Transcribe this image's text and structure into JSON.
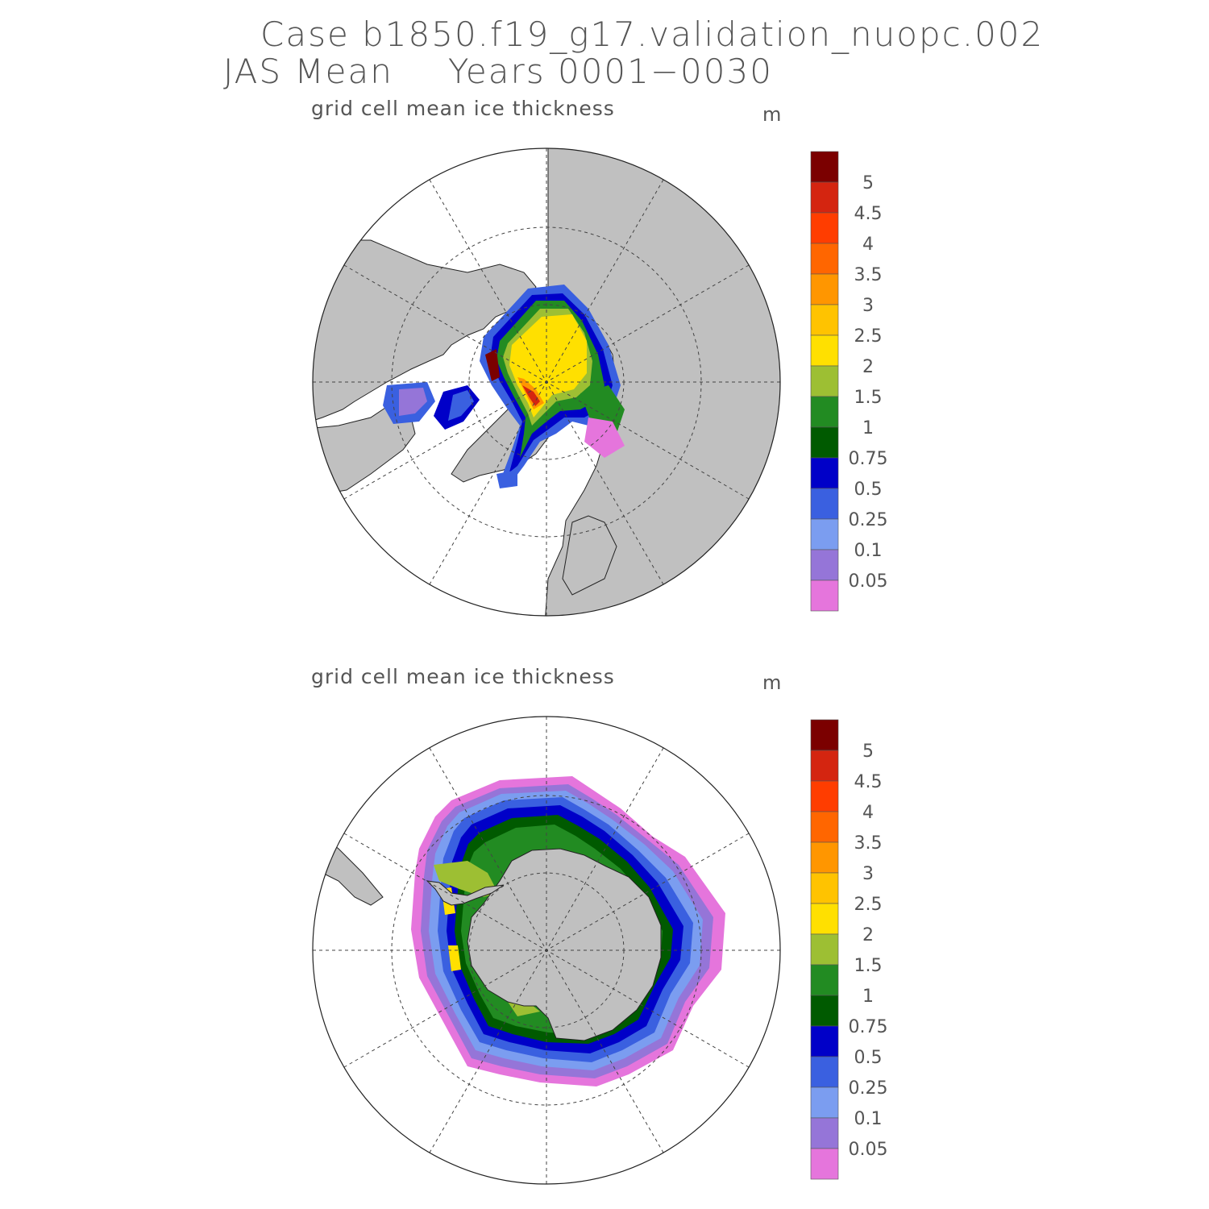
{
  "header": {
    "case": "Case b1850.f19_g17.validation_nuopc.002",
    "season": "JAS Mean",
    "years": "Years 0001−0030"
  },
  "colors": {
    "land": "#c0c0c0",
    "ocean": "#ffffff",
    "graticule": "#444444"
  },
  "panels": [
    {
      "hemisphere": "north",
      "variable": "grid cell mean ice thickness",
      "units": "m"
    },
    {
      "hemisphere": "south",
      "variable": "grid cell mean ice thickness",
      "units": "m"
    }
  ],
  "colorbar": {
    "labels": [
      "5",
      "4.5",
      "4",
      "3.5",
      "3",
      "2.5",
      "2",
      "1.5",
      "1",
      "0.75",
      "0.5",
      "0.25",
      "0.1",
      "0.05"
    ],
    "colors": [
      "#7b0000",
      "#d42510",
      "#ff3d00",
      "#ff6600",
      "#ff9600",
      "#ffc300",
      "#ffe000",
      "#9dbf33",
      "#228b22",
      "#005a00",
      "#0000c8",
      "#3a60e0",
      "#7b9df0",
      "#9575d8",
      "#e575dc"
    ]
  }
}
